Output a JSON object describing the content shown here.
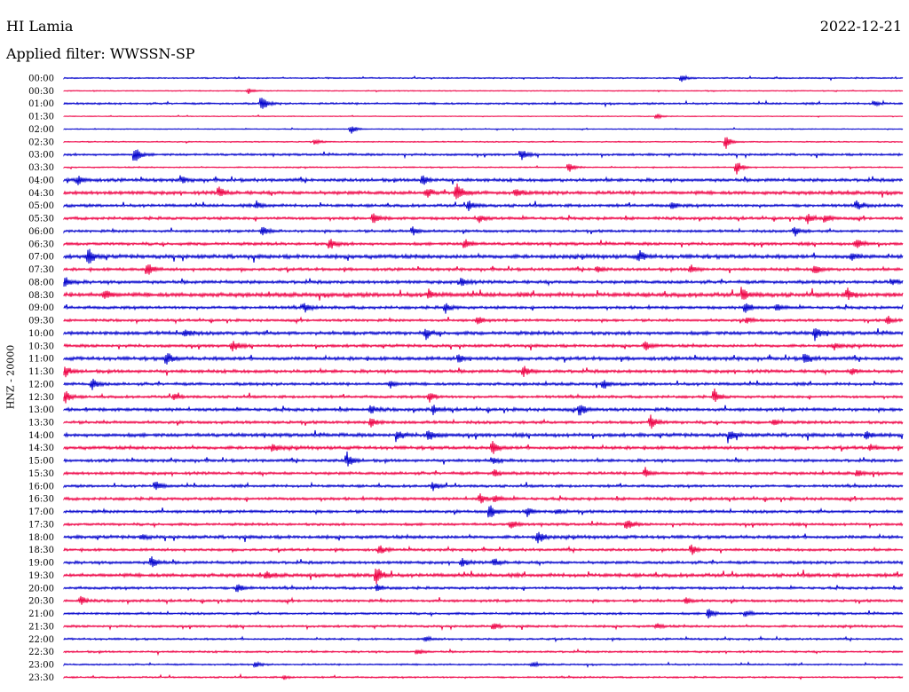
{
  "header": {
    "station": "HI Lamia",
    "date": "2022-12-21",
    "filter": "Applied filter: WWSSN-SP"
  },
  "colors": {
    "even": "#0000cc",
    "odd": "#ee0044"
  },
  "chart_data": {
    "type": "line",
    "title": "HI Lamia",
    "ylabel": "HNZ - 20000",
    "rows": [
      "00:00",
      "00:30",
      "01:00",
      "01:30",
      "02:00",
      "02:30",
      "03:00",
      "03:30",
      "04:00",
      "04:30",
      "05:00",
      "05:30",
      "06:00",
      "06:30",
      "07:00",
      "07:30",
      "08:00",
      "08:30",
      "09:00",
      "09:30",
      "10:00",
      "10:30",
      "11:00",
      "11:30",
      "12:00",
      "12:30",
      "13:00",
      "13:30",
      "14:00",
      "14:30",
      "15:00",
      "15:30",
      "16:00",
      "16:30",
      "17:00",
      "17:30",
      "18:00",
      "18:30",
      "19:00",
      "19:30",
      "20:00",
      "20:30",
      "21:00",
      "21:30",
      "22:00",
      "22:30",
      "23:00",
      "23:30"
    ],
    "noise": [
      0.8,
      0.6,
      1.2,
      0.5,
      0.6,
      0.7,
      1.4,
      0.8,
      2.0,
      2.2,
      1.8,
      1.8,
      1.6,
      1.8,
      2.4,
      1.8,
      2.0,
      2.6,
      1.8,
      1.6,
      2.2,
      1.8,
      2.2,
      2.0,
      1.8,
      1.6,
      2.0,
      1.8,
      2.2,
      2.0,
      1.8,
      1.8,
      1.6,
      1.8,
      1.8,
      1.6,
      2.0,
      1.6,
      1.8,
      2.2,
      1.6,
      1.6,
      1.4,
      1.4,
      1.2,
      1.2,
      1.0,
      1.0
    ],
    "events": [
      [
        [
          768,
          4
        ]
      ],
      [
        [
          280,
          3
        ]
      ],
      [
        [
          295,
          9
        ],
        [
          985,
          3
        ]
      ],
      [
        [
          740,
          3
        ]
      ],
      [
        [
          396,
          5
        ]
      ],
      [
        [
          818,
          8
        ],
        [
          355,
          3
        ]
      ],
      [
        [
          152,
          10
        ],
        [
          587,
          6
        ]
      ],
      [
        [
          641,
          6
        ],
        [
          830,
          8
        ]
      ],
      [
        [
          88,
          6
        ],
        [
          476,
          6
        ],
        [
          205,
          4
        ]
      ],
      [
        [
          247,
          6
        ],
        [
          481,
          5
        ],
        [
          514,
          12
        ],
        [
          581,
          5
        ]
      ],
      [
        [
          528,
          6
        ],
        [
          290,
          4
        ],
        [
          757,
          4
        ],
        [
          965,
          5
        ]
      ],
      [
        [
          421,
          6
        ],
        [
          540,
          5
        ],
        [
          910,
          6
        ],
        [
          930,
          5
        ]
      ],
      [
        [
          296,
          6
        ],
        [
          465,
          5
        ],
        [
          895,
          6
        ]
      ],
      [
        [
          372,
          7
        ],
        [
          524,
          6
        ],
        [
          965,
          7
        ]
      ],
      [
        [
          100,
          10
        ],
        [
          720,
          7
        ],
        [
          960,
          4
        ]
      ],
      [
        [
          166,
          8
        ],
        [
          673,
          4
        ],
        [
          778,
          5
        ],
        [
          918,
          6
        ]
      ],
      [
        [
          74,
          7
        ],
        [
          520,
          6
        ],
        [
          1005,
          4
        ]
      ],
      [
        [
          118,
          6
        ],
        [
          483,
          5
        ],
        [
          837,
          7
        ],
        [
          955,
          6
        ]
      ],
      [
        [
          343,
          5
        ],
        [
          502,
          6
        ],
        [
          840,
          7
        ],
        [
          875,
          4
        ]
      ],
      [
        [
          538,
          5
        ],
        [
          842,
          4
        ],
        [
          1000,
          5
        ]
      ],
      [
        [
          208,
          5
        ],
        [
          480,
          6
        ],
        [
          918,
          8
        ]
      ],
      [
        [
          262,
          6
        ],
        [
          727,
          5
        ],
        [
          940,
          4
        ]
      ],
      [
        [
          188,
          9
        ],
        [
          517,
          5
        ],
        [
          907,
          7
        ]
      ],
      [
        [
          74,
          6
        ],
        [
          590,
          6
        ],
        [
          960,
          4
        ]
      ],
      [
        [
          104,
          7
        ],
        [
          440,
          4
        ],
        [
          680,
          5
        ]
      ],
      [
        [
          74,
          7
        ],
        [
          196,
          4
        ],
        [
          484,
          6
        ],
        [
          805,
          8
        ]
      ],
      [
        [
          418,
          5
        ],
        [
          488,
          5
        ],
        [
          654,
          8
        ]
      ],
      [
        [
          418,
          6
        ],
        [
          733,
          9
        ],
        [
          872,
          4
        ]
      ],
      [
        [
          448,
          6
        ],
        [
          483,
          8
        ],
        [
          822,
          7
        ],
        [
          976,
          5
        ]
      ],
      [
        [
          307,
          5
        ],
        [
          555,
          7
        ],
        [
          980,
          3
        ]
      ],
      [
        [
          391,
          9
        ],
        [
          555,
          4
        ]
      ],
      [
        [
          557,
          5
        ],
        [
          727,
          6
        ],
        [
          966,
          4
        ]
      ],
      [
        [
          175,
          6
        ],
        [
          488,
          5
        ]
      ],
      [
        [
          541,
          6
        ],
        [
          558,
          4
        ]
      ],
      [
        [
          552,
          9
        ],
        [
          594,
          5
        ],
        [
          628,
          3
        ]
      ],
      [
        [
          576,
          5
        ],
        [
          706,
          7
        ]
      ],
      [
        [
          606,
          8
        ],
        [
          160,
          3
        ]
      ],
      [
        [
          428,
          5
        ],
        [
          779,
          6
        ]
      ],
      [
        [
          171,
          8
        ],
        [
          520,
          5
        ],
        [
          557,
          5
        ]
      ],
      [
        [
          424,
          13
        ],
        [
          300,
          4
        ]
      ],
      [
        [
          268,
          6
        ],
        [
          425,
          4
        ]
      ],
      [
        [
          91,
          5
        ],
        [
          773,
          4
        ]
      ],
      [
        [
          798,
          6
        ],
        [
          840,
          4
        ]
      ],
      [
        [
          556,
          4
        ],
        [
          740,
          3
        ]
      ],
      [
        [
          480,
          3
        ]
      ],
      [
        [
          470,
          3
        ]
      ],
      [
        [
          288,
          3
        ],
        [
          600,
          3
        ]
      ],
      [
        [
          320,
          2
        ]
      ]
    ]
  }
}
